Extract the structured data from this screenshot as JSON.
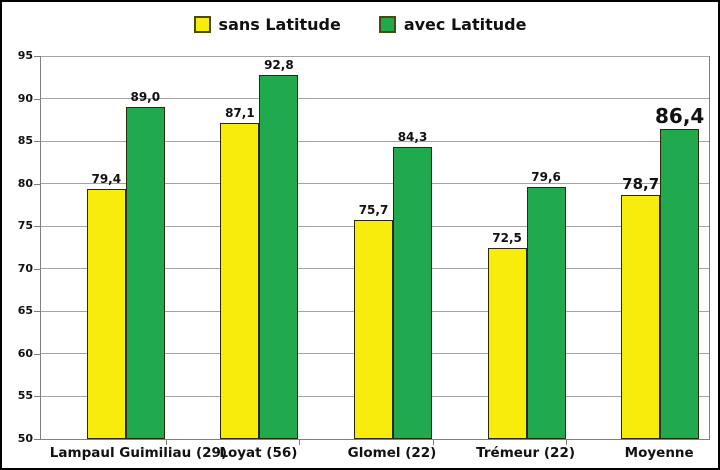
{
  "chart_data": {
    "type": "bar",
    "title": "",
    "categories": [
      "Lampaul Guimiliau (29)",
      "Loyat (56)",
      "Glomel (22)",
      "Trémeur (22)",
      "Moyenne"
    ],
    "series": [
      {
        "name": "sans Latitude",
        "color": "#f7ec0c",
        "values": [
          79.4,
          87.1,
          75.7,
          72.5,
          78.7
        ],
        "labels": [
          "79,4",
          "87,1",
          "75,7",
          "72,5",
          "78,7"
        ]
      },
      {
        "name": "avec Latitude",
        "color": "#21aa4d",
        "values": [
          89.0,
          92.8,
          84.3,
          79.6,
          86.4
        ],
        "labels": [
          "89,0",
          "92,8",
          "84,3",
          "79,6",
          "86,4"
        ]
      }
    ],
    "ylim": [
      50,
      95
    ],
    "ytick_step": 5,
    "yticks": [
      "50",
      "55",
      "60",
      "65",
      "70",
      "75",
      "80",
      "85",
      "90",
      "95"
    ],
    "grid": true,
    "legend_position": "top-center",
    "emphasized_category": "Moyenne",
    "emphasized_category_index": 4
  },
  "colors": {
    "frame": "#7f7f7f",
    "gridline": "#a3a3a3",
    "outer_border": "#000000",
    "background": "#ffffff",
    "text": "#111111"
  }
}
